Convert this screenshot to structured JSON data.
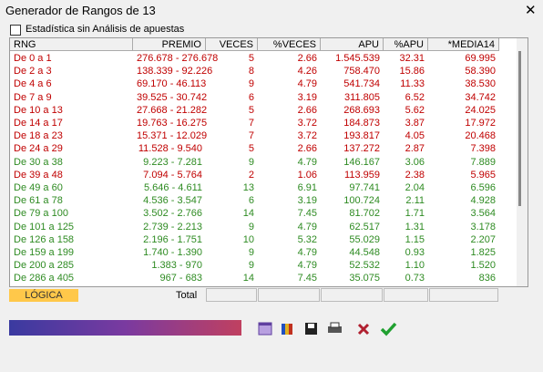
{
  "window": {
    "title": "Generador de Rangos de 13",
    "checkbox_label": "Estadística sin Análisis de apuestas"
  },
  "table": {
    "columns": [
      "RNG",
      "PREMIO",
      "VECES",
      "%VECES",
      "APU",
      "%APU",
      "*MEDIA14"
    ],
    "rows": [
      [
        "De 0 a 1",
        "276.678 - 276.678",
        "5",
        "2.66",
        "1.545.539",
        "32.31",
        "69.995"
      ],
      [
        "De 2 a 3",
        "138.339 - 92.226",
        "8",
        "4.26",
        "758.470",
        "15.86",
        "58.390"
      ],
      [
        "De 4 a 6",
        "69.170 - 46.113",
        "9",
        "4.79",
        "541.734",
        "11.33",
        "38.530"
      ],
      [
        "De 7 a 9",
        "39.525 - 30.742",
        "6",
        "3.19",
        "311.805",
        "6.52",
        "34.742"
      ],
      [
        "De 10 a 13",
        "27.668 - 21.282",
        "5",
        "2.66",
        "268.693",
        "5.62",
        "24.025"
      ],
      [
        "De 14 a 17",
        "19.763 - 16.275",
        "7",
        "3.72",
        "184.873",
        "3.87",
        "17.972"
      ],
      [
        "De 18 a 23",
        "15.371 - 12.029",
        "7",
        "3.72",
        "193.817",
        "4.05",
        "20.468"
      ],
      [
        "De 24 a 29",
        "11.528 - 9.540",
        "5",
        "2.66",
        "137.272",
        "2.87",
        "7.398"
      ],
      [
        "De 30 a 38",
        "9.223 - 7.281",
        "9",
        "4.79",
        "146.167",
        "3.06",
        "7.889"
      ],
      [
        "De 39 a 48",
        "7.094 - 5.764",
        "2",
        "1.06",
        "113.959",
        "2.38",
        "5.965"
      ],
      [
        "De 49 a 60",
        "5.646 - 4.611",
        "13",
        "6.91",
        "97.741",
        "2.04",
        "6.596"
      ],
      [
        "De 61 a 78",
        "4.536 - 3.547",
        "6",
        "3.19",
        "100.724",
        "2.11",
        "4.928"
      ],
      [
        "De 79 a 100",
        "3.502 - 2.766",
        "14",
        "7.45",
        "81.702",
        "1.71",
        "3.564"
      ],
      [
        "De 101 a 125",
        "2.739 - 2.213",
        "9",
        "4.79",
        "62.517",
        "1.31",
        "3.178"
      ],
      [
        "De 126 a 158",
        "2.196 - 1.751",
        "10",
        "5.32",
        "55.029",
        "1.15",
        "2.207"
      ],
      [
        "De 159 a 199",
        "1.740 - 1.390",
        "9",
        "4.79",
        "44.548",
        "0.93",
        "1.825"
      ],
      [
        "De 200 a 285",
        "1.383 - 970",
        "9",
        "4.79",
        "52.532",
        "1.10",
        "1.520"
      ],
      [
        "De 286 a 405",
        "967 - 683",
        "14",
        "7.45",
        "35.075",
        "0.73",
        "836"
      ]
    ],
    "row_colors": [
      "#c00000",
      "#c00000",
      "#c00000",
      "#c00000",
      "#c00000",
      "#c00000",
      "#c00000",
      "#c00000",
      "#2e8b22",
      "#c00000",
      "#2e8b22",
      "#2e8b22",
      "#2e8b22",
      "#2e8b22",
      "#2e8b22",
      "#2e8b22",
      "#2e8b22",
      "#2e8b22"
    ]
  },
  "footer": {
    "mode": "LÓGICA",
    "total_label": "Total"
  }
}
